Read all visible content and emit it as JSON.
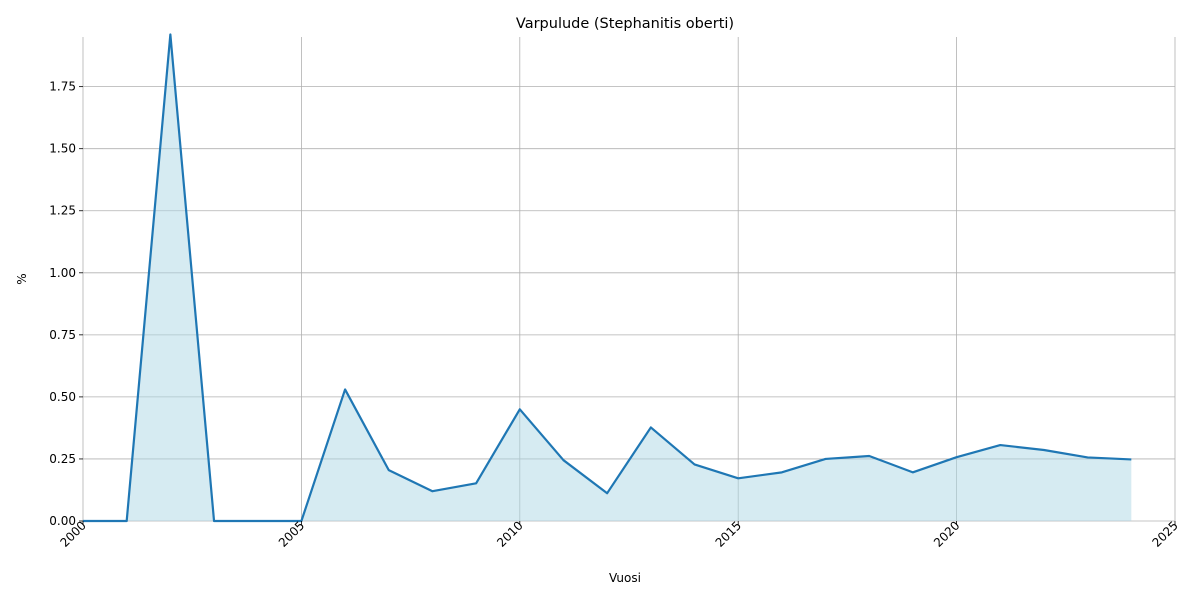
{
  "chart_data": {
    "type": "area",
    "title": "Varpulude (Stephanitis oberti)",
    "xlabel": "Vuosi",
    "ylabel": "%",
    "xlim": [
      2000,
      2025
    ],
    "ylim": [
      0,
      1.95
    ],
    "xticks": [
      2000,
      2005,
      2010,
      2015,
      2020,
      2025
    ],
    "xtick_labels": [
      "2000",
      "2005",
      "2010",
      "2015",
      "2020",
      "2025"
    ],
    "yticks": [
      0,
      0.25,
      0.5,
      0.75,
      1.0,
      1.25,
      1.5,
      1.75
    ],
    "ytick_labels": [
      "0.00",
      "0.25",
      "0.50",
      "0.75",
      "1.00",
      "1.25",
      "1.50",
      "1.75"
    ],
    "grid": true,
    "x": [
      2000,
      2001,
      2002,
      2003,
      2004,
      2005,
      2006,
      2007,
      2008,
      2009,
      2010,
      2011,
      2012,
      2013,
      2014,
      2015,
      2016,
      2017,
      2018,
      2019,
      2020,
      2021,
      2022,
      2023,
      2024
    ],
    "values": [
      0,
      0,
      1.96,
      0,
      0,
      0,
      0.53,
      0.205,
      0.12,
      0.152,
      0.45,
      0.245,
      0.112,
      0.377,
      0.228,
      0.172,
      0.196,
      0.25,
      0.262,
      0.196,
      0.257,
      0.306,
      0.286,
      0.256,
      0.248
    ],
    "line_color": "#1f77b4",
    "fill_color": "#add8e6"
  }
}
